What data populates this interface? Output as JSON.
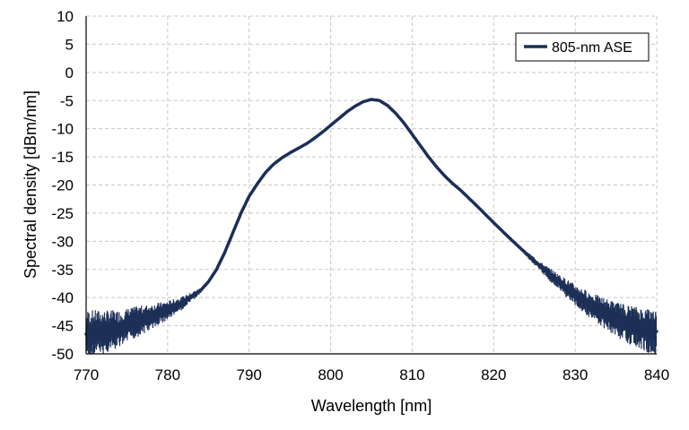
{
  "chart_data": {
    "type": "line",
    "title": "",
    "xlabel": "Wavelength [nm]",
    "ylabel": "Spectral density [dBm/nm]",
    "xlim": [
      770,
      840
    ],
    "ylim": [
      -50,
      10
    ],
    "x_ticks": [
      770,
      780,
      790,
      800,
      810,
      820,
      830,
      840
    ],
    "y_ticks": [
      10,
      5,
      0,
      -5,
      -10,
      -15,
      -20,
      -25,
      -30,
      -35,
      -40,
      -45,
      -50
    ],
    "grid": true,
    "legend_position": "top-right",
    "series": [
      {
        "name": "805-nm ASE",
        "color": "#1b2f57",
        "x": [
          770,
          772,
          774,
          776,
          778,
          780,
          782,
          784,
          785,
          786,
          787,
          788,
          789,
          790,
          791,
          792,
          793,
          794,
          795,
          796,
          797,
          798,
          799,
          800,
          801,
          802,
          803,
          804,
          805,
          806,
          807,
          808,
          809,
          810,
          811,
          812,
          813,
          814,
          815,
          816,
          818,
          820,
          822,
          824,
          826,
          828,
          830,
          832,
          834,
          836,
          838,
          840
        ],
        "values": [
          -46.5,
          -46.0,
          -45.5,
          -44.3,
          -43.3,
          -42.2,
          -40.8,
          -38.8,
          -37.2,
          -35.0,
          -32.0,
          -28.5,
          -25.0,
          -22.0,
          -19.8,
          -17.8,
          -16.3,
          -15.2,
          -14.3,
          -13.5,
          -12.7,
          -11.7,
          -10.6,
          -9.4,
          -8.2,
          -7.0,
          -6.0,
          -5.2,
          -4.8,
          -5.0,
          -5.9,
          -7.3,
          -9.0,
          -11.0,
          -13.0,
          -15.0,
          -16.8,
          -18.4,
          -19.8,
          -21.0,
          -23.8,
          -26.7,
          -29.5,
          -32.2,
          -34.8,
          -37.2,
          -39.5,
          -41.4,
          -43.0,
          -44.3,
          -45.3,
          -46.0
        ]
      }
    ]
  }
}
